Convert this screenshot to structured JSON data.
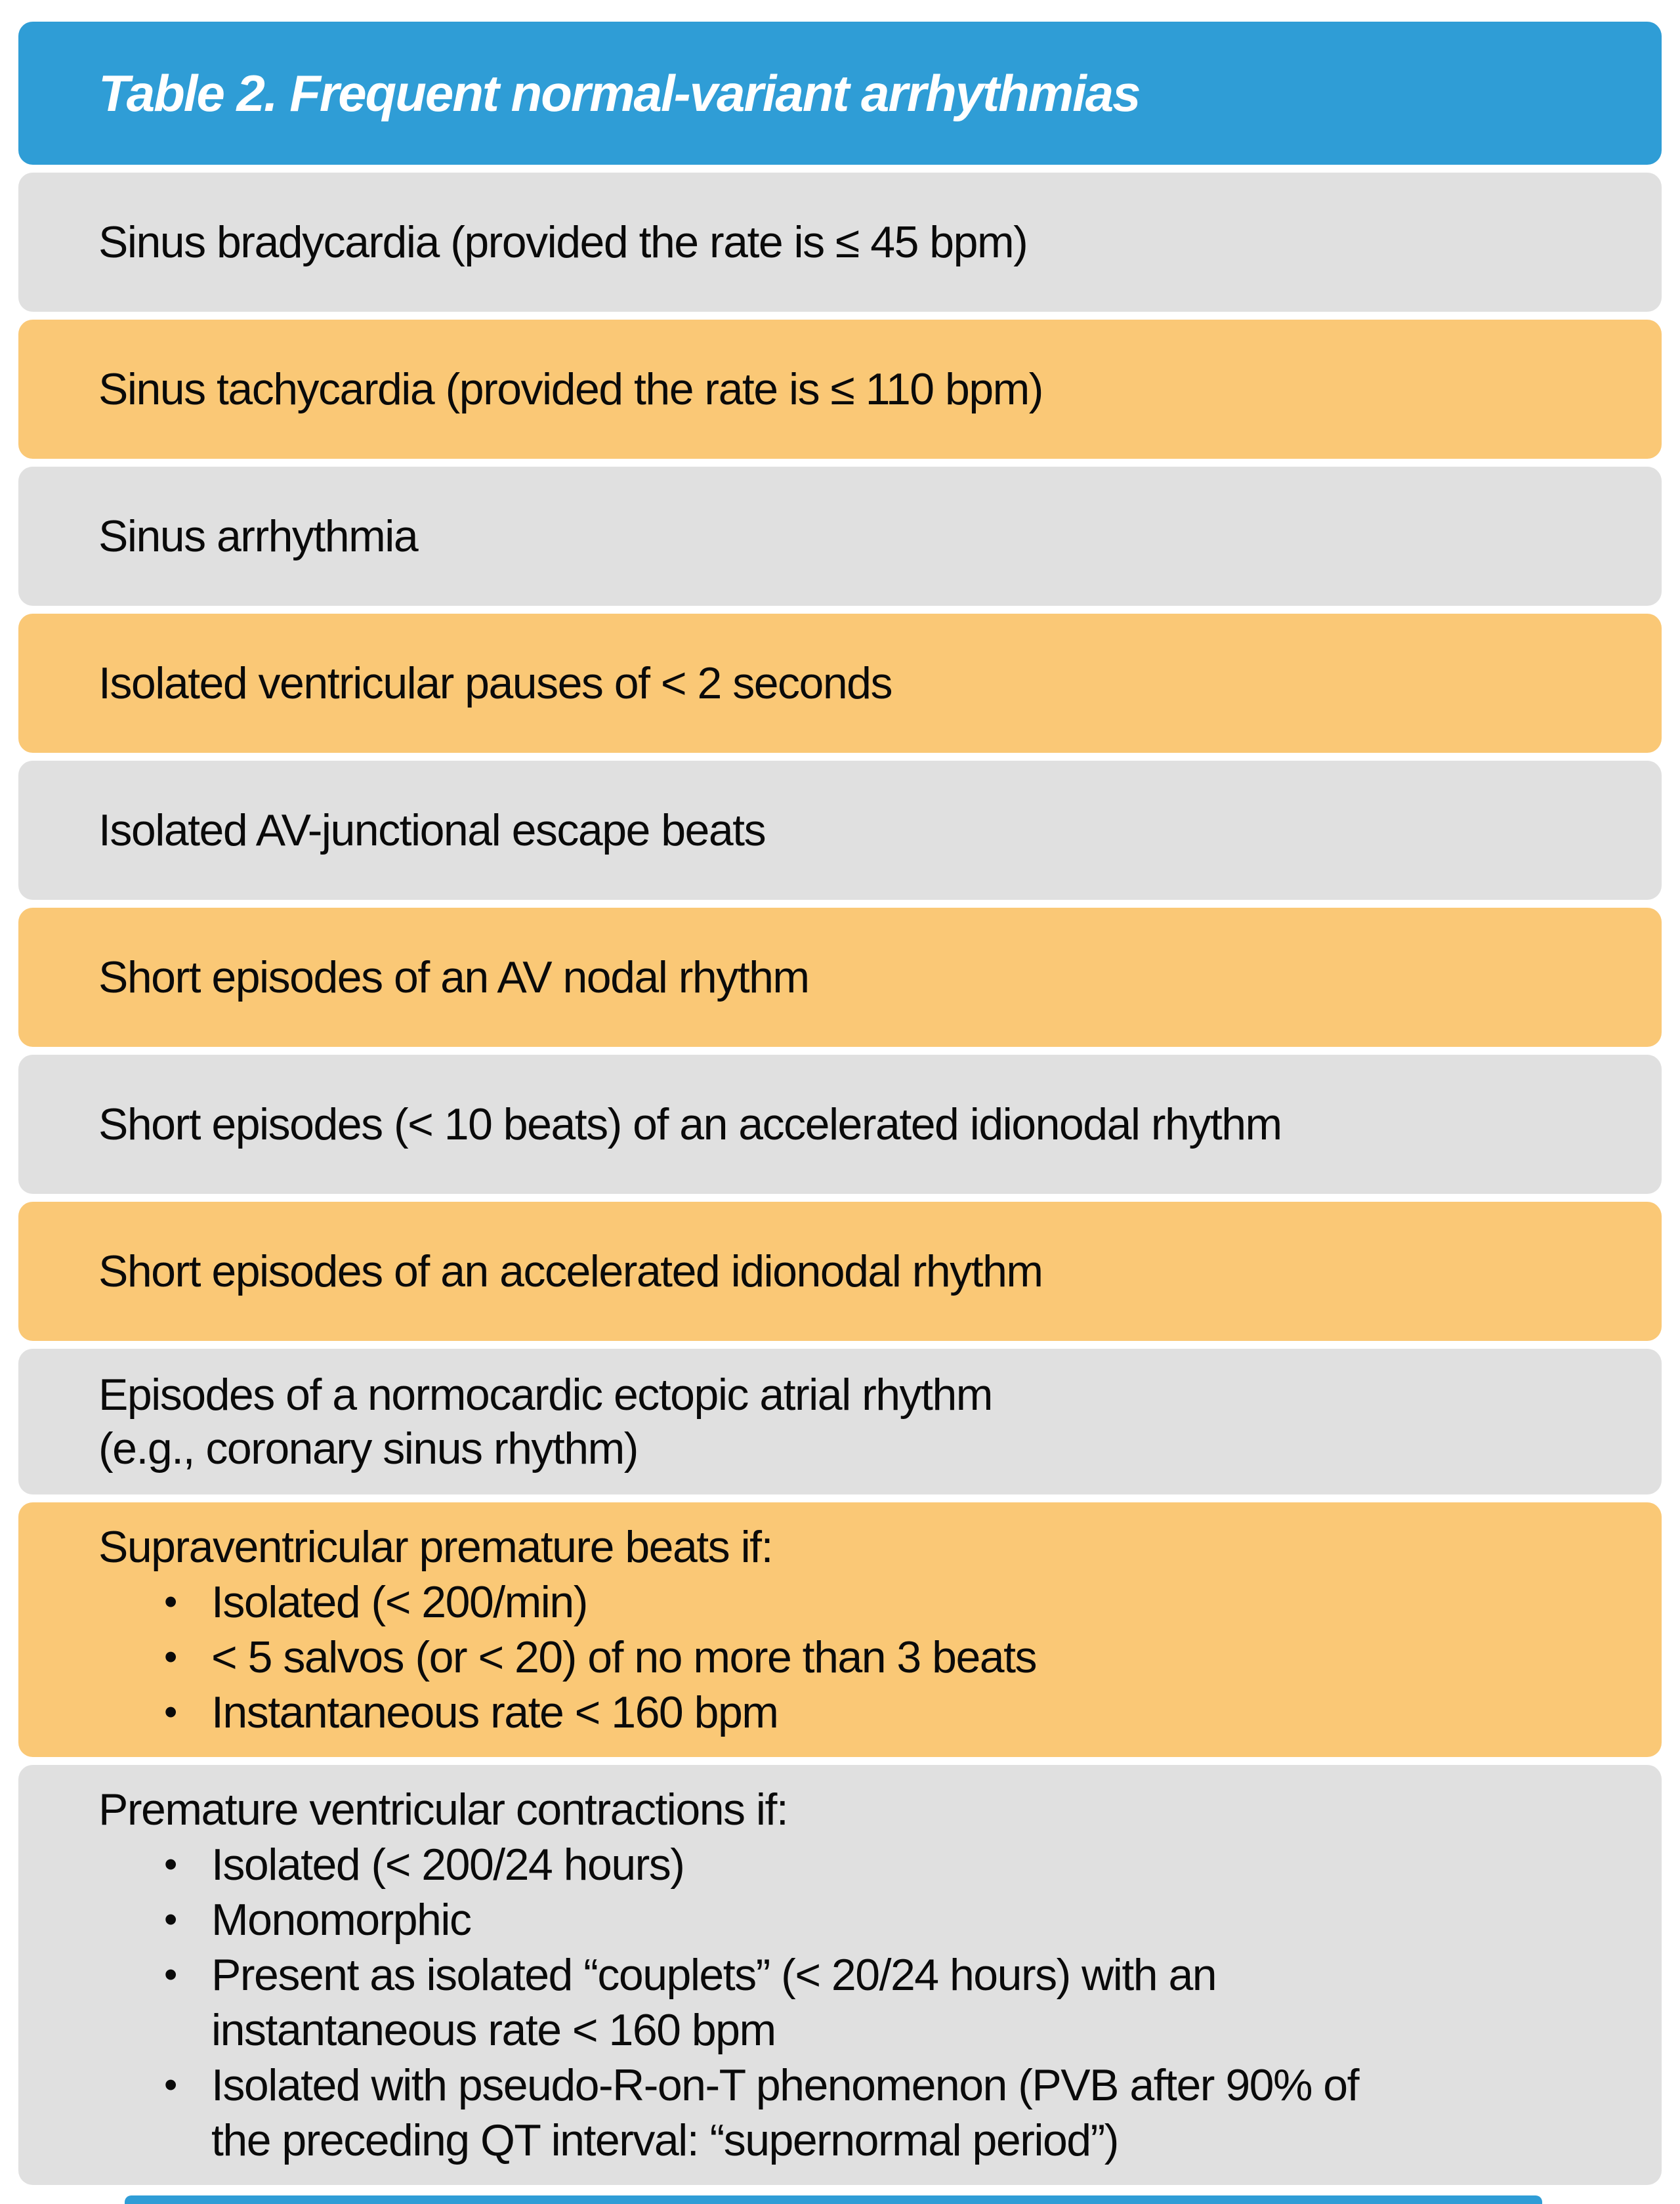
{
  "page": {
    "background": "#ffffff"
  },
  "table": {
    "title": "Table 2. Frequent normal-variant arrhythmias",
    "colors": {
      "header": "#2F9DD6",
      "gray": "#E0E0E0",
      "orange": "#FAC876",
      "title_text": "#FFFFFF",
      "body_text": "#0A0A0A"
    },
    "rows": [
      {
        "variant": "gray",
        "lines": [
          "Sinus bradycardia (provided the rate is ≤ 45 bpm)"
        ]
      },
      {
        "variant": "orange",
        "lines": [
          "Sinus tachycardia (provided the rate is ≤ 110 bpm)"
        ]
      },
      {
        "variant": "gray",
        "lines": [
          "Sinus arrhythmia"
        ]
      },
      {
        "variant": "orange",
        "lines": [
          "Isolated ventricular pauses of < 2 seconds"
        ]
      },
      {
        "variant": "gray",
        "lines": [
          "Isolated AV-junctional escape beats"
        ]
      },
      {
        "variant": "orange",
        "lines": [
          "Short episodes of an AV nodal rhythm"
        ]
      },
      {
        "variant": "gray",
        "lines": [
          "Short episodes (< 10 beats) of an accelerated idionodal rhythm"
        ]
      },
      {
        "variant": "orange",
        "lines": [
          "Short episodes of an accelerated idionodal rhythm"
        ]
      },
      {
        "variant": "gray",
        "lines": [
          "Episodes of a normocardic ectopic atrial rhythm",
          "(e.g., coronary sinus rhythm)"
        ]
      },
      {
        "variant": "orange",
        "lines": [
          "Supraventricular premature beats if:"
        ],
        "bullets": [
          [
            "Isolated (< 200/min)"
          ],
          [
            "< 5 salvos (or < 20) of no more than 3 beats"
          ],
          [
            "Instantaneous rate < 160 bpm"
          ]
        ]
      },
      {
        "variant": "gray",
        "lines": [
          "Premature ventricular contractions if:"
        ],
        "bullets": [
          [
            "Isolated (< 200/24 hours)"
          ],
          [
            "Monomorphic"
          ],
          [
            "Present as isolated “couplets” (< 20/24 hours) with an",
            "instantaneous rate < 160 bpm"
          ],
          [
            "Isolated with pseudo-R-on-T phenomenon (PVB after 90% of",
            "the preceding QT interval: “supernormal period”)"
          ]
        ]
      }
    ],
    "bullet_glyph": "•"
  }
}
